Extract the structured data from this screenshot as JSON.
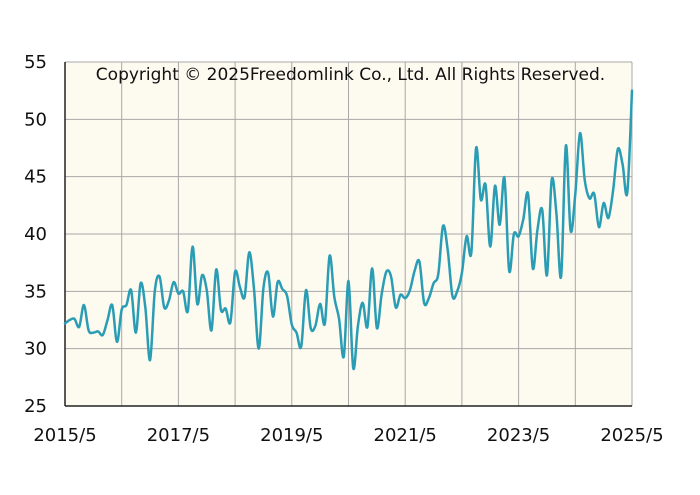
{
  "chart_data": {
    "type": "line",
    "title": "",
    "xlabel": "",
    "ylabel": "",
    "annotation": "Copyright © 2025Freedomlink Co., Ltd. All Rights Reserved.",
    "x_ticks": [
      "2015/5",
      "2017/5",
      "2019/5",
      "2021/5",
      "2023/5",
      "2025/5"
    ],
    "y_ticks": [
      "25",
      "30",
      "35",
      "40",
      "45",
      "50",
      "55"
    ],
    "ylim": [
      25,
      55
    ],
    "xlim": [
      "2015/5",
      "2025/5"
    ],
    "grid": true,
    "plot_background": "#fdfaf0",
    "series": [
      {
        "color": "#2a9db5",
        "points": [
          [
            "2015/5",
            32.2
          ],
          [
            "2015/6",
            32.5
          ],
          [
            "2015/7",
            32.6
          ],
          [
            "2015/8",
            31.9
          ],
          [
            "2015/9",
            33.8
          ],
          [
            "2015/10",
            31.6
          ],
          [
            "2015/11",
            31.4
          ],
          [
            "2015/12",
            31.5
          ],
          [
            "2016/1",
            31.2
          ],
          [
            "2016/2",
            32.5
          ],
          [
            "2016/3",
            33.8
          ],
          [
            "2016/4",
            30.6
          ],
          [
            "2016/5",
            33.4
          ],
          [
            "2016/6",
            33.8
          ],
          [
            "2016/7",
            35.1
          ],
          [
            "2016/8",
            31.4
          ],
          [
            "2016/9",
            35.7
          ],
          [
            "2016/10",
            33.6
          ],
          [
            "2016/11",
            29.0
          ],
          [
            "2016/12",
            35.0
          ],
          [
            "2017/1",
            36.3
          ],
          [
            "2017/2",
            33.6
          ],
          [
            "2017/3",
            34.2
          ],
          [
            "2017/4",
            35.8
          ],
          [
            "2017/5",
            34.8
          ],
          [
            "2017/6",
            35.0
          ],
          [
            "2017/7",
            33.3
          ],
          [
            "2017/8",
            38.9
          ],
          [
            "2017/9",
            33.9
          ],
          [
            "2017/10",
            36.4
          ],
          [
            "2017/11",
            35.1
          ],
          [
            "2017/12",
            31.6
          ],
          [
            "2018/1",
            36.9
          ],
          [
            "2018/2",
            33.4
          ],
          [
            "2018/3",
            33.5
          ],
          [
            "2018/4",
            32.3
          ],
          [
            "2018/5",
            36.7
          ],
          [
            "2018/6",
            35.4
          ],
          [
            "2018/7",
            34.5
          ],
          [
            "2018/8",
            38.4
          ],
          [
            "2018/9",
            35.2
          ],
          [
            "2018/10",
            30.0
          ],
          [
            "2018/11",
            35.3
          ],
          [
            "2018/12",
            36.6
          ],
          [
            "2019/1",
            32.8
          ],
          [
            "2019/2",
            35.8
          ],
          [
            "2019/3",
            35.2
          ],
          [
            "2019/4",
            34.6
          ],
          [
            "2019/5",
            32.1
          ],
          [
            "2019/6",
            31.4
          ],
          [
            "2019/7",
            30.2
          ],
          [
            "2019/8",
            35.1
          ],
          [
            "2019/9",
            31.8
          ],
          [
            "2019/10",
            32.0
          ],
          [
            "2019/11",
            33.9
          ],
          [
            "2019/12",
            32.2
          ],
          [
            "2020/1",
            38.1
          ],
          [
            "2020/2",
            34.5
          ],
          [
            "2020/3",
            32.6
          ],
          [
            "2020/4",
            29.3
          ],
          [
            "2020/5",
            35.9
          ],
          [
            "2020/6",
            28.3
          ],
          [
            "2020/7",
            32.0
          ],
          [
            "2020/8",
            34.0
          ],
          [
            "2020/9",
            31.9
          ],
          [
            "2020/10",
            37.0
          ],
          [
            "2020/11",
            31.8
          ],
          [
            "2020/12",
            34.7
          ],
          [
            "2021/1",
            36.7
          ],
          [
            "2021/2",
            36.3
          ],
          [
            "2021/3",
            33.6
          ],
          [
            "2021/4",
            34.7
          ],
          [
            "2021/5",
            34.4
          ],
          [
            "2021/6",
            35.1
          ],
          [
            "2021/7",
            36.8
          ],
          [
            "2021/8",
            37.6
          ],
          [
            "2021/9",
            34.0
          ],
          [
            "2021/10",
            34.4
          ],
          [
            "2021/11",
            35.7
          ],
          [
            "2021/12",
            36.5
          ],
          [
            "2022/1",
            40.7
          ],
          [
            "2022/2",
            38.6
          ],
          [
            "2022/3",
            34.6
          ],
          [
            "2022/4",
            35.0
          ],
          [
            "2022/5",
            36.6
          ],
          [
            "2022/6",
            39.8
          ],
          [
            "2022/7",
            38.4
          ],
          [
            "2022/8",
            47.5
          ],
          [
            "2022/9",
            43.0
          ],
          [
            "2022/10",
            44.3
          ],
          [
            "2022/11",
            38.9
          ],
          [
            "2022/12",
            44.2
          ],
          [
            "2023/1",
            40.8
          ],
          [
            "2023/2",
            44.9
          ],
          [
            "2023/3",
            36.8
          ],
          [
            "2023/4",
            40.0
          ],
          [
            "2023/5",
            39.8
          ],
          [
            "2023/6",
            41.3
          ],
          [
            "2023/7",
            43.5
          ],
          [
            "2023/8",
            37.0
          ],
          [
            "2023/9",
            40.4
          ],
          [
            "2023/10",
            42.1
          ],
          [
            "2023/11",
            36.4
          ],
          [
            "2023/12",
            44.7
          ],
          [
            "2024/1",
            41.8
          ],
          [
            "2024/2",
            36.3
          ],
          [
            "2024/3",
            47.7
          ],
          [
            "2024/4",
            40.3
          ],
          [
            "2024/5",
            43.5
          ],
          [
            "2024/6",
            48.8
          ],
          [
            "2024/7",
            44.7
          ],
          [
            "2024/8",
            43.1
          ],
          [
            "2024/9",
            43.5
          ],
          [
            "2024/10",
            40.6
          ],
          [
            "2024/11",
            42.7
          ],
          [
            "2024/12",
            41.4
          ],
          [
            "2025/1",
            43.8
          ],
          [
            "2025/2",
            47.4
          ],
          [
            "2025/3",
            46.1
          ],
          [
            "2025/4",
            43.6
          ],
          [
            "2025/5",
            52.5
          ]
        ]
      }
    ]
  }
}
